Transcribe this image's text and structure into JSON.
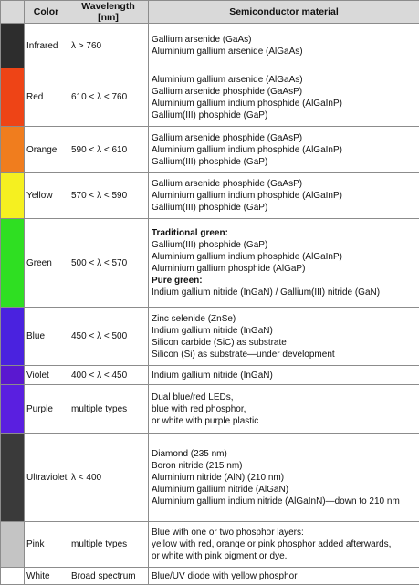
{
  "headers": {
    "color": "Color",
    "wavelength": "Wavelength [nm]",
    "material": "Semiconductor material"
  },
  "rows": [
    {
      "swatch": "#2d2d2d",
      "name": "Infrared",
      "wavelength": "λ > 760",
      "height": 48,
      "materials": [
        {
          "text": "Gallium arsenide (GaAs)",
          "bold": false
        },
        {
          "text": "Aluminium gallium arsenide (AlGaAs)",
          "bold": false
        }
      ]
    },
    {
      "swatch": "#ee4416",
      "name": "Red",
      "wavelength": "610 < λ < 760",
      "height": 63,
      "materials": [
        {
          "text": "Aluminium gallium arsenide (AlGaAs)",
          "bold": false
        },
        {
          "text": "Gallium arsenide phosphide (GaAsP)",
          "bold": false
        },
        {
          "text": "Aluminium gallium indium phosphide (AlGaInP)",
          "bold": false
        },
        {
          "text": "Gallium(III) phosphide (GaP)",
          "bold": false
        }
      ]
    },
    {
      "swatch": "#f07d1e",
      "name": "Orange",
      "wavelength": "590 < λ < 610",
      "height": 50,
      "materials": [
        {
          "text": "Gallium arsenide phosphide (GaAsP)",
          "bold": false
        },
        {
          "text": "Aluminium gallium indium phosphide (AlGaInP)",
          "bold": false
        },
        {
          "text": "Gallium(III) phosphide (GaP)",
          "bold": false
        }
      ]
    },
    {
      "swatch": "#f5f020",
      "name": "Yellow",
      "wavelength": "570 < λ < 590",
      "height": 50,
      "materials": [
        {
          "text": "Gallium arsenide phosphide (GaAsP)",
          "bold": false
        },
        {
          "text": "Aluminium gallium indium phosphide (AlGaInP)",
          "bold": false
        },
        {
          "text": "Gallium(III) phosphide (GaP)",
          "bold": false
        }
      ]
    },
    {
      "swatch": "#2fdf22",
      "name": "Green",
      "wavelength": "500 < λ < 570",
      "height": 96,
      "materials": [
        {
          "text": "Traditional green:",
          "bold": true
        },
        {
          "text": "Gallium(III) phosphide (GaP)",
          "bold": false
        },
        {
          "text": "Aluminium gallium indium phosphide (AlGaInP)",
          "bold": false
        },
        {
          "text": "Aluminium gallium phosphide (AlGaP)",
          "bold": false
        },
        {
          "text": "Pure green:",
          "bold": true
        },
        {
          "text": "Indium gallium nitride (InGaN) / Gallium(III) nitride (GaN)",
          "bold": false
        }
      ]
    },
    {
      "swatch": "#4a22df",
      "name": "Blue",
      "wavelength": "450 < λ < 500",
      "height": 63,
      "materials": [
        {
          "text": "Zinc selenide (ZnSe)",
          "bold": false
        },
        {
          "text": "Indium gallium nitride (InGaN)",
          "bold": false
        },
        {
          "text": "Silicon carbide (SiC) as substrate",
          "bold": false
        },
        {
          "text": "Silicon (Si) as substrate—under development",
          "bold": false
        }
      ]
    },
    {
      "swatch": "#5a18d0",
      "name": "Violet",
      "wavelength": "400 < λ < 450",
      "height": 20,
      "materials": [
        {
          "text": "Indium gallium nitride (InGaN)",
          "bold": false
        }
      ]
    },
    {
      "swatch": "#5a1fe0",
      "name": "Purple",
      "wavelength": "multiple types",
      "height": 53,
      "materials": [
        {
          "text": "Dual blue/red LEDs,",
          "bold": false
        },
        {
          "text": "blue with red phosphor,",
          "bold": false
        },
        {
          "text": "or white with purple plastic",
          "bold": false
        }
      ]
    },
    {
      "swatch": "#3a3a3a",
      "name": "Ultraviolet",
      "wavelength": "λ < 400",
      "height": 97,
      "materials": [
        {
          "text": "Diamond (235 nm)",
          "bold": false
        },
        {
          "text": "Boron nitride (215 nm)",
          "bold": false
        },
        {
          "text": "Aluminium nitride (AlN) (210 nm)",
          "bold": false
        },
        {
          "text": "Aluminium gallium nitride (AlGaN)",
          "bold": false
        },
        {
          "text": "Aluminium gallium indium nitride (AlGaInN)—down to 210 nm",
          "bold": false
        }
      ]
    },
    {
      "swatch": "#c4c4c4",
      "name": "Pink",
      "wavelength": "multiple types",
      "height": 50,
      "materials": [
        {
          "text": "Blue with one or two phosphor layers:",
          "bold": false
        },
        {
          "text": "yellow with red, orange or pink phosphor added afterwards,",
          "bold": false
        },
        {
          "text": "or white with pink pigment or dye.",
          "bold": false
        }
      ]
    },
    {
      "swatch": "#ffffff",
      "name": "White",
      "wavelength": "Broad spectrum",
      "height": 19,
      "materials": [
        {
          "text": "Blue/UV diode with yellow phosphor",
          "bold": false
        }
      ]
    }
  ]
}
